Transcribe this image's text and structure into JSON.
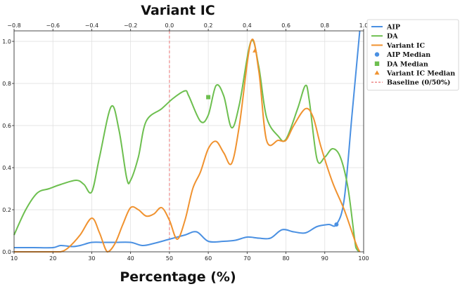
{
  "chart_data": {
    "type": "line",
    "title": "Variant IC",
    "xlabel": "Percentage (%)",
    "ylabel": "",
    "xlim": [
      10,
      100
    ],
    "ylim": [
      0,
      1.05
    ],
    "x_ticks": [
      "10",
      "20",
      "30",
      "40",
      "50",
      "60",
      "70",
      "80",
      "90",
      "100"
    ],
    "y_ticks": [
      "0.0",
      "0.2",
      "0.4",
      "0.6",
      "0.8",
      "1.0"
    ],
    "top_axis": {
      "xlim": [
        -0.8,
        1.0
      ],
      "ticks": [
        "−0.8",
        "−0.6",
        "−0.4",
        "−0.2",
        "0.0",
        "0.2",
        "0.4",
        "0.6",
        "0.8",
        "1.0"
      ]
    },
    "grid": true,
    "legend_position": "top-right-outside",
    "series": [
      {
        "name": "AIP",
        "color": "#4a90e2",
        "points": [
          [
            10,
            0.02
          ],
          [
            15,
            0.02
          ],
          [
            20,
            0.02
          ],
          [
            22,
            0.03
          ],
          [
            25,
            0.025
          ],
          [
            27,
            0.03
          ],
          [
            30,
            0.045
          ],
          [
            33,
            0.045
          ],
          [
            36,
            0.045
          ],
          [
            40,
            0.045
          ],
          [
            43,
            0.03
          ],
          [
            46,
            0.04
          ],
          [
            50,
            0.06
          ],
          [
            54,
            0.08
          ],
          [
            57,
            0.095
          ],
          [
            60,
            0.05
          ],
          [
            64,
            0.05
          ],
          [
            67,
            0.055
          ],
          [
            70,
            0.07
          ],
          [
            73,
            0.065
          ],
          [
            76,
            0.065
          ],
          [
            79,
            0.105
          ],
          [
            82,
            0.095
          ],
          [
            85,
            0.09
          ],
          [
            88,
            0.12
          ],
          [
            91,
            0.13
          ],
          [
            93,
            0.13
          ],
          [
            95,
            0.25
          ],
          [
            97,
            0.65
          ],
          [
            99,
            1.05
          ]
        ]
      },
      {
        "name": "DA",
        "color": "#6dbf4f",
        "points": [
          [
            10,
            0.08
          ],
          [
            13,
            0.2
          ],
          [
            16,
            0.28
          ],
          [
            19,
            0.3
          ],
          [
            22,
            0.32
          ],
          [
            26,
            0.34
          ],
          [
            28,
            0.32
          ],
          [
            30,
            0.285
          ],
          [
            32,
            0.45
          ],
          [
            35,
            0.69
          ],
          [
            37,
            0.58
          ],
          [
            39,
            0.35
          ],
          [
            40,
            0.34
          ],
          [
            42,
            0.45
          ],
          [
            44,
            0.62
          ],
          [
            48,
            0.68
          ],
          [
            51,
            0.73
          ],
          [
            54,
            0.765
          ],
          [
            55,
            0.74
          ],
          [
            58,
            0.62
          ],
          [
            60,
            0.65
          ],
          [
            62,
            0.79
          ],
          [
            64,
            0.74
          ],
          [
            66,
            0.59
          ],
          [
            68,
            0.7
          ],
          [
            71,
            1.0
          ],
          [
            73,
            0.88
          ],
          [
            75,
            0.64
          ],
          [
            78,
            0.55
          ],
          [
            80,
            0.535
          ],
          [
            83,
            0.68
          ],
          [
            85,
            0.79
          ],
          [
            86,
            0.72
          ],
          [
            88,
            0.44
          ],
          [
            90,
            0.45
          ],
          [
            92,
            0.49
          ],
          [
            94,
            0.45
          ],
          [
            96,
            0.3
          ],
          [
            98,
            0.02
          ],
          [
            99,
            0.0
          ]
        ]
      },
      {
        "name": "Variant IC",
        "color": "#f0922f",
        "points": [
          [
            10,
            0.0
          ],
          [
            20,
            0.0
          ],
          [
            22,
            0.0
          ],
          [
            24,
            0.02
          ],
          [
            27,
            0.08
          ],
          [
            30,
            0.16
          ],
          [
            32,
            0.09
          ],
          [
            34,
            0.0
          ],
          [
            36,
            0.04
          ],
          [
            38,
            0.13
          ],
          [
            40,
            0.21
          ],
          [
            42,
            0.2
          ],
          [
            44,
            0.17
          ],
          [
            46,
            0.18
          ],
          [
            48,
            0.21
          ],
          [
            50,
            0.15
          ],
          [
            52,
            0.06
          ],
          [
            54,
            0.15
          ],
          [
            56,
            0.3
          ],
          [
            58,
            0.38
          ],
          [
            60,
            0.49
          ],
          [
            62,
            0.525
          ],
          [
            64,
            0.47
          ],
          [
            66,
            0.42
          ],
          [
            68,
            0.6
          ],
          [
            71,
            1.0
          ],
          [
            73,
            0.86
          ],
          [
            75,
            0.53
          ],
          [
            78,
            0.53
          ],
          [
            80,
            0.53
          ],
          [
            82,
            0.6
          ],
          [
            85,
            0.68
          ],
          [
            87,
            0.64
          ],
          [
            89,
            0.5
          ],
          [
            92,
            0.33
          ],
          [
            95,
            0.2
          ],
          [
            98,
            0.04
          ],
          [
            99,
            0.0
          ]
        ]
      }
    ],
    "markers": [
      {
        "name": "AIP Median",
        "shape": "circle",
        "color": "#4a90e2",
        "x": 93.0,
        "y": 0.13
      },
      {
        "name": "DA Median",
        "shape": "square",
        "color": "#6dbf4f",
        "x": 60.0,
        "y": 0.735
      },
      {
        "name": "Variant IC Median",
        "shape": "triangle",
        "color": "#f0922f",
        "x": 72.0,
        "y": 0.955
      }
    ],
    "baseline": {
      "name": "Baseline (0/50%)",
      "x": 50,
      "color": "#ee8a8a"
    },
    "legend": [
      "AIP",
      "DA",
      "Variant IC",
      "AIP Median",
      "DA Median",
      "Variant IC Median",
      "Baseline (0/50%)"
    ]
  }
}
